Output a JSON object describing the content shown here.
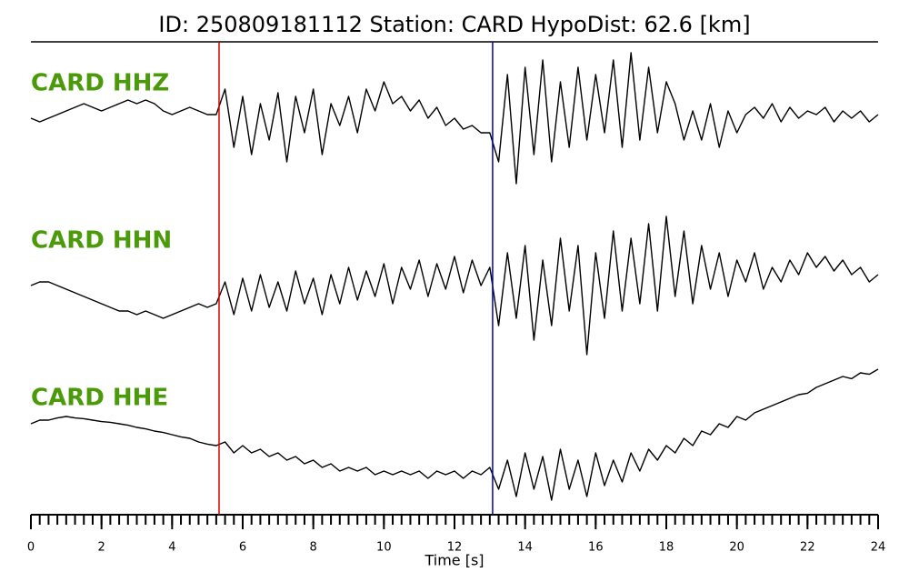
{
  "chart_data": {
    "type": "line",
    "title": "ID: 250809181112   Station: CARD   HypoDist:    62.6 [km]",
    "xlabel": "Time [s]",
    "xlim": [
      0,
      24
    ],
    "xticks": [
      0,
      2,
      4,
      6,
      8,
      10,
      12,
      14,
      16,
      18,
      20,
      22,
      24
    ],
    "xminor": [
      0,
      0.25,
      0.5,
      0.75,
      1,
      1.25,
      1.5,
      1.75,
      2,
      2.25,
      2.5,
      2.75,
      3,
      3.25,
      3.5,
      3.75,
      4,
      4.25,
      4.5,
      4.75,
      5,
      5.25,
      5.5,
      5.75,
      6,
      6.25,
      6.5,
      6.75,
      7,
      7.25,
      7.5,
      7.75,
      8,
      8.25,
      8.5,
      8.75,
      9,
      9.25,
      9.5,
      9.75,
      10,
      10.25,
      10.5,
      10.75,
      11,
      11.25,
      11.5,
      11.75,
      12,
      12.25,
      12.5,
      12.75,
      13,
      13.25,
      13.5,
      13.75,
      14,
      14.25,
      14.5,
      14.75,
      15,
      15.25,
      15.5,
      15.75,
      16,
      16.25,
      16.5,
      16.75,
      17,
      17.25,
      17.5,
      17.75,
      18,
      18.25,
      18.5,
      18.75,
      19,
      19.25,
      19.5,
      19.75,
      20,
      20.25,
      20.5,
      20.75,
      21,
      21.25,
      21.5,
      21.75,
      22,
      22.25,
      22.5,
      22.75,
      23,
      23.25,
      23.5,
      23.75,
      24
    ],
    "ylim": [
      -1,
      1
    ],
    "picks": [
      {
        "x": 5.33,
        "color": "#e00000"
      },
      {
        "x": 13.08,
        "color": "#0000c0"
      }
    ],
    "x": [
      0,
      0.25,
      0.5,
      0.75,
      1,
      1.25,
      1.5,
      1.75,
      2,
      2.25,
      2.5,
      2.75,
      3,
      3.25,
      3.5,
      3.75,
      4,
      4.25,
      4.5,
      4.75,
      5,
      5.25,
      5.5,
      5.75,
      6,
      6.25,
      6.5,
      6.75,
      7,
      7.25,
      7.5,
      7.75,
      8,
      8.25,
      8.5,
      8.75,
      9,
      9.25,
      9.5,
      9.75,
      10,
      10.25,
      10.5,
      10.75,
      11,
      11.25,
      11.5,
      11.75,
      12,
      12.25,
      12.5,
      12.75,
      13,
      13.25,
      13.5,
      13.75,
      14,
      14.25,
      14.5,
      14.75,
      15,
      15.25,
      15.5,
      15.75,
      16,
      16.25,
      16.5,
      16.75,
      17,
      17.25,
      17.5,
      17.75,
      18,
      18.25,
      18.5,
      18.75,
      19,
      19.25,
      19.5,
      19.75,
      20,
      20.25,
      20.5,
      20.75,
      21,
      21.25,
      21.5,
      21.75,
      22,
      22.25,
      22.5,
      22.75,
      23,
      23.25,
      23.5,
      23.75,
      24
    ],
    "series": [
      {
        "name": "CARD HHZ",
        "color": "#000000",
        "values": [
          0,
          -0.05,
          0,
          0.05,
          0.1,
          0.15,
          0.2,
          0.15,
          0.1,
          0.15,
          0.2,
          0.25,
          0.2,
          0.25,
          0.2,
          0.1,
          0.05,
          0.1,
          0.15,
          0.1,
          0.05,
          0.05,
          0.4,
          -0.4,
          0.3,
          -0.5,
          0.2,
          -0.3,
          0.35,
          -0.6,
          0.3,
          -0.2,
          0.4,
          -0.5,
          0.2,
          -0.1,
          0.3,
          -0.2,
          0.4,
          0.1,
          0.5,
          0.2,
          0.3,
          0.1,
          0.25,
          0.0,
          0.15,
          -0.1,
          0.0,
          -0.15,
          -0.1,
          -0.2,
          -0.2,
          -0.6,
          0.6,
          -0.9,
          0.7,
          -0.5,
          0.8,
          -0.6,
          0.5,
          -0.4,
          0.7,
          -0.3,
          0.6,
          -0.2,
          0.8,
          -0.4,
          0.9,
          -0.3,
          0.7,
          -0.2,
          0.5,
          0.2,
          -0.3,
          0.1,
          -0.3,
          0.2,
          -0.4,
          0.1,
          -0.2,
          0.05,
          0.15,
          0.0,
          0.2,
          -0.05,
          0.15,
          0.0,
          0.1,
          0.05,
          0.15,
          -0.05,
          0.1,
          0.0,
          0.1,
          -0.05,
          0.05
        ]
      },
      {
        "name": "CARD HHN",
        "color": "#000000",
        "values": [
          0.05,
          0.1,
          0.1,
          0.05,
          0.0,
          -0.05,
          -0.1,
          -0.15,
          -0.2,
          -0.25,
          -0.3,
          -0.3,
          -0.35,
          -0.3,
          -0.35,
          -0.4,
          -0.35,
          -0.3,
          -0.25,
          -0.2,
          -0.25,
          -0.2,
          0.1,
          -0.35,
          0.15,
          -0.3,
          0.2,
          -0.25,
          0.1,
          -0.3,
          0.25,
          -0.2,
          0.15,
          -0.35,
          0.2,
          -0.2,
          0.3,
          -0.15,
          0.25,
          -0.1,
          0.35,
          -0.2,
          0.3,
          0.0,
          0.4,
          -0.1,
          0.35,
          0.0,
          0.45,
          -0.05,
          0.4,
          0.05,
          0.3,
          -0.5,
          0.5,
          -0.4,
          0.6,
          -0.7,
          0.4,
          -0.5,
          0.7,
          -0.3,
          0.6,
          -0.9,
          0.5,
          -0.4,
          0.8,
          -0.3,
          0.7,
          -0.2,
          0.9,
          -0.3,
          1.0,
          -0.1,
          0.8,
          -0.2,
          0.6,
          0.0,
          0.5,
          -0.1,
          0.4,
          0.1,
          0.5,
          0.0,
          0.3,
          0.1,
          0.4,
          0.2,
          0.5,
          0.3,
          0.45,
          0.25,
          0.4,
          0.2,
          0.3,
          0.1,
          0.2
        ]
      },
      {
        "name": "CARD HHE",
        "color": "#000000",
        "values": [
          0.3,
          0.35,
          0.35,
          0.38,
          0.4,
          0.38,
          0.37,
          0.35,
          0.33,
          0.32,
          0.3,
          0.28,
          0.25,
          0.23,
          0.2,
          0.18,
          0.15,
          0.12,
          0.1,
          0.05,
          0.02,
          0.0,
          0.05,
          -0.1,
          0.0,
          -0.1,
          -0.05,
          -0.15,
          -0.1,
          -0.2,
          -0.15,
          -0.25,
          -0.2,
          -0.3,
          -0.25,
          -0.35,
          -0.3,
          -0.35,
          -0.3,
          -0.4,
          -0.35,
          -0.4,
          -0.35,
          -0.4,
          -0.35,
          -0.45,
          -0.35,
          -0.4,
          -0.35,
          -0.45,
          -0.35,
          -0.4,
          -0.3,
          -0.6,
          -0.2,
          -0.7,
          -0.1,
          -0.6,
          -0.15,
          -0.75,
          -0.05,
          -0.6,
          -0.2,
          -0.7,
          -0.1,
          -0.55,
          -0.2,
          -0.5,
          -0.1,
          -0.35,
          -0.05,
          -0.2,
          0.0,
          -0.1,
          0.1,
          0.0,
          0.2,
          0.15,
          0.3,
          0.25,
          0.4,
          0.35,
          0.45,
          0.5,
          0.55,
          0.6,
          0.65,
          0.7,
          0.72,
          0.8,
          0.85,
          0.9,
          0.95,
          0.92,
          1.0,
          0.98,
          1.05
        ]
      }
    ]
  }
}
